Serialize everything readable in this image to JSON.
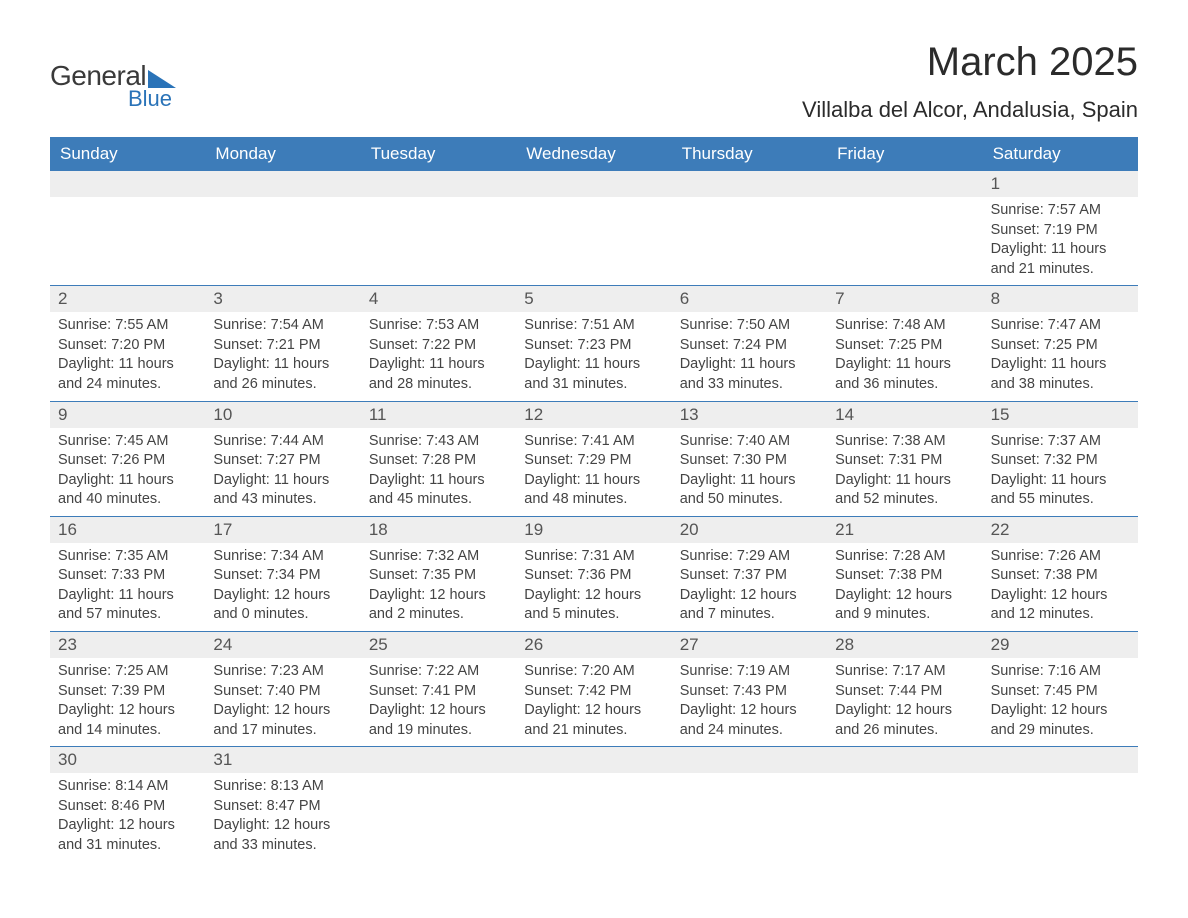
{
  "logo": {
    "word1": "General",
    "word2": "Blue"
  },
  "title": "March 2025",
  "location": "Villalba del Alcor, Andalusia, Spain",
  "colors": {
    "header_bg": "#3d7cb9",
    "header_text": "#ffffff",
    "daynum_bg": "#eeeeee",
    "border": "#3d7cb9",
    "body_text": "#444444",
    "logo_accent": "#2a73b8"
  },
  "day_names": [
    "Sunday",
    "Monday",
    "Tuesday",
    "Wednesday",
    "Thursday",
    "Friday",
    "Saturday"
  ],
  "labels": {
    "sunrise": "Sunrise:",
    "sunset": "Sunset:",
    "daylight": "Daylight:"
  },
  "weeks": [
    [
      null,
      null,
      null,
      null,
      null,
      null,
      {
        "n": "1",
        "sunrise": "7:57 AM",
        "sunset": "7:19 PM",
        "daylight": "11 hours and 21 minutes."
      }
    ],
    [
      {
        "n": "2",
        "sunrise": "7:55 AM",
        "sunset": "7:20 PM",
        "daylight": "11 hours and 24 minutes."
      },
      {
        "n": "3",
        "sunrise": "7:54 AM",
        "sunset": "7:21 PM",
        "daylight": "11 hours and 26 minutes."
      },
      {
        "n": "4",
        "sunrise": "7:53 AM",
        "sunset": "7:22 PM",
        "daylight": "11 hours and 28 minutes."
      },
      {
        "n": "5",
        "sunrise": "7:51 AM",
        "sunset": "7:23 PM",
        "daylight": "11 hours and 31 minutes."
      },
      {
        "n": "6",
        "sunrise": "7:50 AM",
        "sunset": "7:24 PM",
        "daylight": "11 hours and 33 minutes."
      },
      {
        "n": "7",
        "sunrise": "7:48 AM",
        "sunset": "7:25 PM",
        "daylight": "11 hours and 36 minutes."
      },
      {
        "n": "8",
        "sunrise": "7:47 AM",
        "sunset": "7:25 PM",
        "daylight": "11 hours and 38 minutes."
      }
    ],
    [
      {
        "n": "9",
        "sunrise": "7:45 AM",
        "sunset": "7:26 PM",
        "daylight": "11 hours and 40 minutes."
      },
      {
        "n": "10",
        "sunrise": "7:44 AM",
        "sunset": "7:27 PM",
        "daylight": "11 hours and 43 minutes."
      },
      {
        "n": "11",
        "sunrise": "7:43 AM",
        "sunset": "7:28 PM",
        "daylight": "11 hours and 45 minutes."
      },
      {
        "n": "12",
        "sunrise": "7:41 AM",
        "sunset": "7:29 PM",
        "daylight": "11 hours and 48 minutes."
      },
      {
        "n": "13",
        "sunrise": "7:40 AM",
        "sunset": "7:30 PM",
        "daylight": "11 hours and 50 minutes."
      },
      {
        "n": "14",
        "sunrise": "7:38 AM",
        "sunset": "7:31 PM",
        "daylight": "11 hours and 52 minutes."
      },
      {
        "n": "15",
        "sunrise": "7:37 AM",
        "sunset": "7:32 PM",
        "daylight": "11 hours and 55 minutes."
      }
    ],
    [
      {
        "n": "16",
        "sunrise": "7:35 AM",
        "sunset": "7:33 PM",
        "daylight": "11 hours and 57 minutes."
      },
      {
        "n": "17",
        "sunrise": "7:34 AM",
        "sunset": "7:34 PM",
        "daylight": "12 hours and 0 minutes."
      },
      {
        "n": "18",
        "sunrise": "7:32 AM",
        "sunset": "7:35 PM",
        "daylight": "12 hours and 2 minutes."
      },
      {
        "n": "19",
        "sunrise": "7:31 AM",
        "sunset": "7:36 PM",
        "daylight": "12 hours and 5 minutes."
      },
      {
        "n": "20",
        "sunrise": "7:29 AM",
        "sunset": "7:37 PM",
        "daylight": "12 hours and 7 minutes."
      },
      {
        "n": "21",
        "sunrise": "7:28 AM",
        "sunset": "7:38 PM",
        "daylight": "12 hours and 9 minutes."
      },
      {
        "n": "22",
        "sunrise": "7:26 AM",
        "sunset": "7:38 PM",
        "daylight": "12 hours and 12 minutes."
      }
    ],
    [
      {
        "n": "23",
        "sunrise": "7:25 AM",
        "sunset": "7:39 PM",
        "daylight": "12 hours and 14 minutes."
      },
      {
        "n": "24",
        "sunrise": "7:23 AM",
        "sunset": "7:40 PM",
        "daylight": "12 hours and 17 minutes."
      },
      {
        "n": "25",
        "sunrise": "7:22 AM",
        "sunset": "7:41 PM",
        "daylight": "12 hours and 19 minutes."
      },
      {
        "n": "26",
        "sunrise": "7:20 AM",
        "sunset": "7:42 PM",
        "daylight": "12 hours and 21 minutes."
      },
      {
        "n": "27",
        "sunrise": "7:19 AM",
        "sunset": "7:43 PM",
        "daylight": "12 hours and 24 minutes."
      },
      {
        "n": "28",
        "sunrise": "7:17 AM",
        "sunset": "7:44 PM",
        "daylight": "12 hours and 26 minutes."
      },
      {
        "n": "29",
        "sunrise": "7:16 AM",
        "sunset": "7:45 PM",
        "daylight": "12 hours and 29 minutes."
      }
    ],
    [
      {
        "n": "30",
        "sunrise": "8:14 AM",
        "sunset": "8:46 PM",
        "daylight": "12 hours and 31 minutes."
      },
      {
        "n": "31",
        "sunrise": "8:13 AM",
        "sunset": "8:47 PM",
        "daylight": "12 hours and 33 minutes."
      },
      null,
      null,
      null,
      null,
      null
    ]
  ]
}
